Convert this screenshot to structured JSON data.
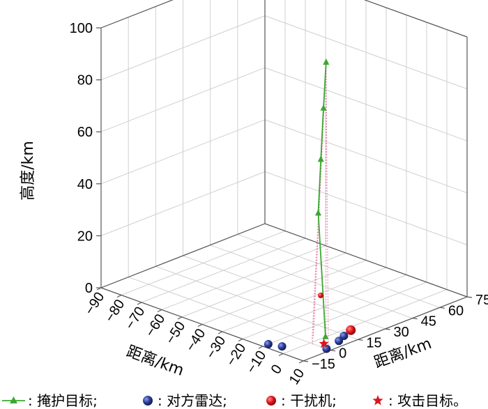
{
  "chart_data": {
    "type": "scatter3d",
    "title": "",
    "axes": {
      "x": {
        "label": "距离/km",
        "range": [
          -90,
          10
        ],
        "ticks": [
          -90,
          -80,
          -70,
          -60,
          -50,
          -40,
          -30,
          -20,
          -10,
          0,
          10
        ]
      },
      "y": {
        "label": "距离/km",
        "range": [
          -15,
          75
        ],
        "ticks": [
          -15,
          0,
          15,
          30,
          45,
          60,
          75
        ]
      },
      "z": {
        "label": "高度/km",
        "range": [
          0,
          100
        ],
        "ticks": [
          0,
          20,
          40,
          60,
          80,
          100
        ]
      }
    },
    "grid": true,
    "legend_position": "bottom",
    "series": [
      {
        "name": "掩护目标",
        "legend_label": ": 掩护目标;",
        "marker": "triangle",
        "color": "#3aa830",
        "points": [
          {
            "x": -3,
            "y": 12,
            "z": 104
          },
          {
            "x": -2.5,
            "y": 10,
            "z": 87
          },
          {
            "x": -2,
            "y": 8,
            "z": 68
          },
          {
            "x": -1.5,
            "y": 6,
            "z": 48
          },
          {
            "x": 3,
            "y": 5,
            "z": 2
          }
        ]
      },
      {
        "name": "对方雷达",
        "legend_label": ": 对方雷达;",
        "marker": "sphere",
        "color": "#2b3c9a",
        "points": [
          {
            "x": -10,
            "y": -12,
            "z": 0
          },
          {
            "x": -5,
            "y": -10,
            "z": 0
          },
          {
            "x": 8,
            "y": 0,
            "z": 0
          },
          {
            "x": 6,
            "y": 9,
            "z": 0
          },
          {
            "x": 4,
            "y": 14,
            "z": 0
          }
        ]
      },
      {
        "name": "干扰机",
        "legend_label": ": 干扰机;",
        "marker": "sphere",
        "color": "#e0161b",
        "points": [
          {
            "x": 2,
            "y": 20,
            "z": 0
          },
          {
            "x": -3,
            "y": 9,
            "z": 15
          }
        ]
      },
      {
        "name": "攻击目标",
        "legend_label": ": 攻击目标。",
        "marker": "star",
        "color": "#d8161c",
        "points": [
          {
            "x": 4,
            "y": 3,
            "z": 0
          }
        ]
      }
    ]
  }
}
